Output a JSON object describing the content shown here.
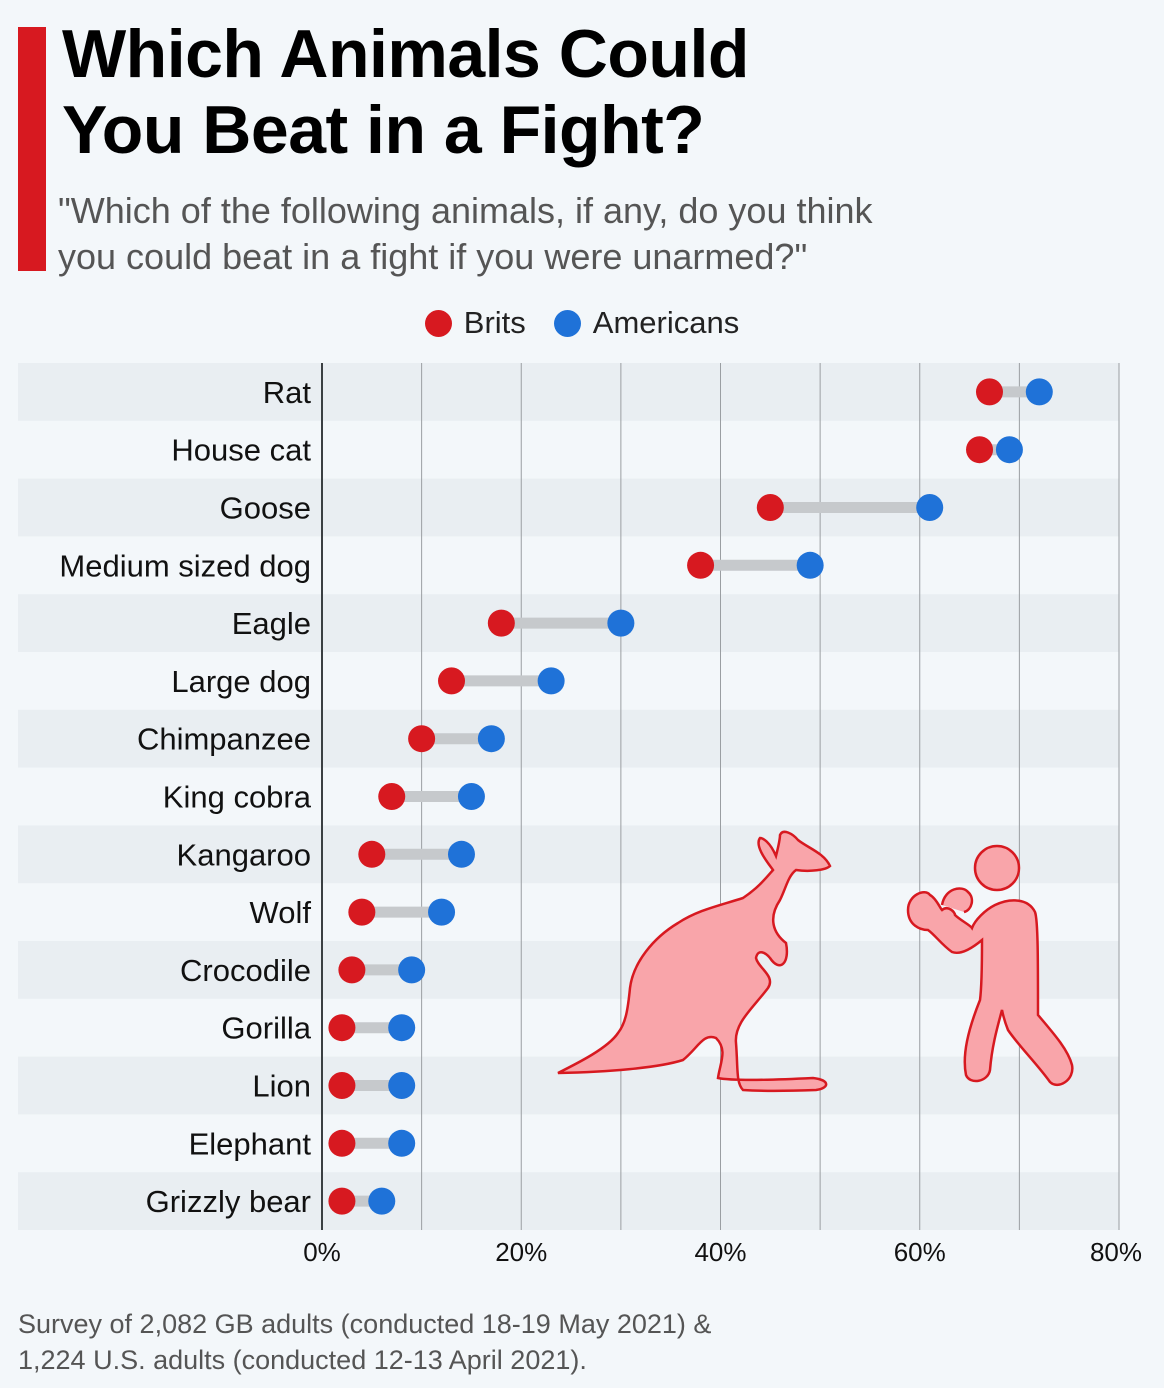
{
  "title": "Which Animals Could You Beat in a Fight?",
  "title_lines": [
    "Which Animals Could",
    "You Beat in a Fight?"
  ],
  "subtitle_lines": [
    "\"Which of the following animals, if any, do you think",
    "you could beat in a fight if you were unarmed?\""
  ],
  "footer_lines": [
    "Survey of 2,082 GB adults (conducted 18-19 May 2021) &",
    "1,224 U.S. adults (conducted 12-13 April 2021)."
  ],
  "colors": {
    "accent": "#d71920",
    "brits": "#d71920",
    "americans": "#1f72d8",
    "connector": "#c6c9cc",
    "band": "#e9eef2",
    "illustration_fill": "#f9a5aa",
    "illustration_stroke": "#d71920"
  },
  "illustration_icons": [
    "kangaroo-icon",
    "boxer-icon"
  ],
  "chart_data": {
    "type": "dumbbell",
    "title": "Which Animals Could You Beat in a Fight?",
    "xlabel": "",
    "ylabel": "",
    "xlim": [
      0,
      80
    ],
    "x_ticks": [
      0,
      20,
      40,
      60,
      80
    ],
    "x_tick_labels": [
      "0%",
      "20%",
      "40%",
      "60%",
      "80%"
    ],
    "grid": "vertical every 10%",
    "legend_position": "top-center",
    "categories": [
      "Rat",
      "House cat",
      "Goose",
      "Medium sized dog",
      "Eagle",
      "Large dog",
      "Chimpanzee",
      "King cobra",
      "Kangaroo",
      "Wolf",
      "Crocodile",
      "Gorilla",
      "Lion",
      "Elephant",
      "Grizzly bear"
    ],
    "series": [
      {
        "name": "Brits",
        "values": [
          67,
          66,
          45,
          38,
          18,
          13,
          10,
          7,
          5,
          4,
          3,
          2,
          2,
          2,
          2
        ]
      },
      {
        "name": "Americans",
        "values": [
          72,
          69,
          61,
          49,
          30,
          23,
          17,
          15,
          14,
          12,
          9,
          8,
          8,
          8,
          6
        ]
      }
    ]
  }
}
